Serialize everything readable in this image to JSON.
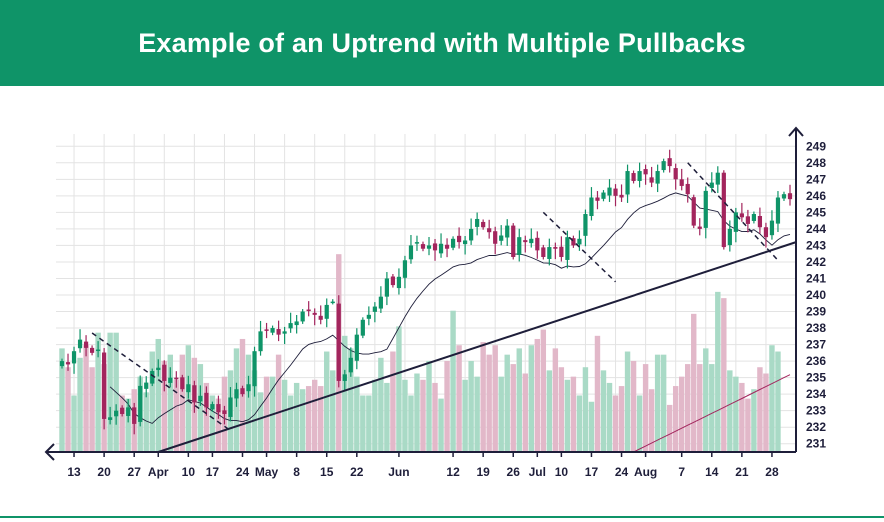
{
  "header": {
    "title": "Example of an Uptrend with Multiple Pullbacks"
  },
  "colors": {
    "header_bg": "#0f9468",
    "up": "#0f9468",
    "down": "#a3255d",
    "vol_up": "#a9dac6",
    "vol_down": "#e2b8c9",
    "grid": "#e3e3e3",
    "axis": "#1e1e3a",
    "ma_short": "#1e1e3a",
    "ma_long": "#a3255d"
  },
  "chart_data": {
    "type": "candlestick",
    "title": "Example of an Uptrend with Multiple Pullbacks",
    "y_ticks": [
      "249",
      "248",
      "247",
      "246",
      "245",
      "244",
      "243",
      "242",
      "241",
      "240",
      "239",
      "238",
      "237",
      "236",
      "235",
      "234",
      "233",
      "232",
      "231"
    ],
    "ylim": [
      230.5,
      249.5
    ],
    "x_ticks": [
      {
        "label": "13",
        "index": 2
      },
      {
        "label": "20",
        "index": 7
      },
      {
        "label": "27",
        "index": 12
      },
      {
        "label": "Apr",
        "index": 16
      },
      {
        "label": "10",
        "index": 21
      },
      {
        "label": "17",
        "index": 25
      },
      {
        "label": "24",
        "index": 30
      },
      {
        "label": "May",
        "index": 34
      },
      {
        "label": "8",
        "index": 39
      },
      {
        "label": "15",
        "index": 44
      },
      {
        "label": "22",
        "index": 49
      },
      {
        "label": "Jun",
        "index": 56
      },
      {
        "label": "12",
        "index": 65
      },
      {
        "label": "19",
        "index": 70
      },
      {
        "label": "26",
        "index": 75
      },
      {
        "label": "Jul",
        "index": 79
      },
      {
        "label": "10",
        "index": 83
      },
      {
        "label": "17",
        "index": 88
      },
      {
        "label": "24",
        "index": 93
      },
      {
        "label": "Aug",
        "index": 97
      },
      {
        "label": "7",
        "index": 103
      },
      {
        "label": "14",
        "index": 108
      },
      {
        "label": "21",
        "index": 113
      },
      {
        "label": "28",
        "index": 118
      }
    ],
    "closes": [
      236.0,
      235.8,
      236.6,
      237.3,
      236.8,
      236.5,
      236.7,
      232.5,
      232.6,
      233.0,
      232.8,
      233.2,
      232.2,
      234.5,
      234.7,
      235.4,
      235.6,
      234.8,
      235.0,
      234.9,
      234.3,
      234.6,
      233.5,
      233.9,
      233.2,
      233.4,
      232.9,
      232.8,
      233.8,
      234.3,
      234.0,
      234.6,
      236.6,
      237.8,
      237.9,
      238.0,
      237.6,
      237.8,
      238.3,
      238.4,
      239.0,
      239.1,
      238.8,
      238.5,
      239.4,
      239.6,
      234.8,
      235.2,
      236.2,
      237.6,
      238.5,
      238.8,
      239.3,
      239.9,
      241.0,
      240.6,
      241.1,
      242.1,
      243.0,
      243.2,
      242.8,
      243.0,
      242.7,
      243.1,
      242.8,
      243.4,
      243.2,
      243.3,
      244.0,
      244.6,
      244.1,
      243.8,
      243.1,
      243.6,
      244.2,
      242.3,
      243.5,
      243.2,
      243.4,
      242.7,
      242.3,
      242.9,
      242.8,
      242.3,
      243.5,
      243.0,
      243.4,
      244.9,
      245.9,
      245.7,
      246.2,
      246.5,
      246.0,
      245.9,
      247.5,
      246.9,
      247.5,
      247.3,
      246.8,
      247.5,
      248.1,
      247.8,
      247.0,
      246.6,
      246.1,
      244.2,
      244.0,
      246.3,
      246.8,
      247.4,
      242.9,
      244.0,
      245.0,
      244.7,
      244.3,
      244.9,
      244.1,
      243.5,
      244.5,
      245.9,
      246.1,
      245.8
    ],
    "volume_pct": [
      33,
      27,
      18,
      30,
      34,
      27,
      38,
      28,
      38,
      38,
      18,
      17,
      20,
      24,
      19,
      32,
      36,
      29,
      31,
      23,
      31,
      34,
      30,
      28,
      22,
      18,
      17,
      24,
      26,
      33,
      36,
      31,
      26,
      19,
      24,
      24,
      31,
      23,
      18,
      22,
      20,
      21,
      23,
      21,
      32,
      26,
      63,
      37,
      33,
      24,
      18,
      18,
      23,
      30,
      22,
      32,
      40,
      23,
      18,
      25,
      23,
      29,
      22,
      17,
      29,
      45,
      34,
      23,
      29,
      24,
      35,
      31,
      34,
      24,
      31,
      28,
      33,
      25,
      34,
      36,
      39,
      26,
      33,
      27,
      23,
      24,
      18,
      27,
      16,
      37,
      26,
      22,
      18,
      21,
      32,
      29,
      18,
      28,
      20,
      31,
      31,
      15,
      21,
      24,
      28,
      44,
      28,
      33,
      28,
      51,
      49,
      26,
      24,
      22,
      17,
      20,
      27,
      25,
      34,
      32
    ],
    "annotations": [
      "trendline",
      "moving averages",
      "pullback lines"
    ]
  }
}
